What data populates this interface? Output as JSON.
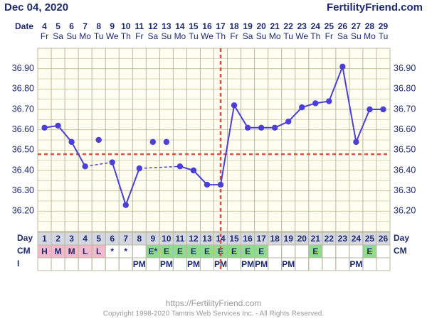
{
  "header": {
    "date": "Dec 04, 2020",
    "site": "FertilityFriend.com"
  },
  "chart_data": {
    "type": "line",
    "date_label": "Date",
    "dates": [
      "4",
      "5",
      "6",
      "7",
      "8",
      "9",
      "10",
      "11",
      "12",
      "13",
      "14",
      "15",
      "16",
      "17",
      "18",
      "19",
      "20",
      "21",
      "22",
      "23",
      "24",
      "25",
      "26",
      "27",
      "28",
      "29"
    ],
    "weekdays": [
      "Fr",
      "Sa",
      "Su",
      "Mo",
      "Tu",
      "We",
      "Th",
      "Fr",
      "Sa",
      "Su",
      "Mo",
      "Tu",
      "We",
      "Th",
      "Fr",
      "Sa",
      "Su",
      "Mo",
      "Tu",
      "We",
      "Th",
      "Fr",
      "Sa",
      "Su",
      "Mo",
      "Tu"
    ],
    "series": [
      {
        "color": "#4a3fd6",
        "connected": true,
        "values": [
          36.61,
          36.62,
          36.54,
          36.42,
          null,
          36.44,
          36.23,
          36.41,
          null,
          null,
          36.42,
          36.4,
          36.33,
          36.33,
          36.72,
          36.61,
          36.61,
          36.61,
          36.64,
          36.71,
          36.73,
          36.74,
          36.91,
          36.54,
          36.7,
          36.7
        ]
      },
      {
        "color": "#4a3fd6",
        "connected": false,
        "values": [
          null,
          null,
          null,
          null,
          36.55,
          null,
          null,
          null,
          36.54,
          36.54,
          null,
          null,
          null,
          null,
          null,
          null,
          null,
          null,
          null,
          null,
          null,
          null,
          null,
          null,
          null,
          null
        ]
      }
    ],
    "ylim": [
      36.1,
      37.0
    ],
    "yticks": [
      {
        "value": 36.2,
        "label": "36.20"
      },
      {
        "value": 36.3,
        "label": "36.30"
      },
      {
        "value": 36.4,
        "label": "36.40"
      },
      {
        "value": 36.5,
        "label": "36.50"
      },
      {
        "value": 36.6,
        "label": "36.60"
      },
      {
        "value": 36.7,
        "label": "36.70"
      },
      {
        "value": 36.8,
        "label": "36.80"
      },
      {
        "value": 36.9,
        "label": "36.90"
      }
    ],
    "grid": true,
    "coverline": 36.48,
    "coverline_color": "#e04a3f",
    "ovulation_date": "17",
    "rows": [
      {
        "label": "Day",
        "values": [
          "1",
          "2",
          "3",
          "4",
          "5",
          "6",
          "7",
          "8",
          "9",
          "10",
          "11",
          "12",
          "13",
          "14",
          "15",
          "16",
          "17",
          "18",
          "19",
          "20",
          "21",
          "22",
          "23",
          "24",
          "25",
          "26"
        ]
      },
      {
        "label": "CM",
        "values": [
          "H",
          "M",
          "M",
          "L",
          "L",
          "*",
          "*",
          null,
          "E*",
          "E",
          "E",
          "E",
          "E",
          "E",
          "E",
          "E",
          "E",
          null,
          null,
          null,
          "E",
          null,
          null,
          null,
          "E",
          null
        ]
      },
      {
        "label": "I",
        "values": [
          null,
          null,
          null,
          null,
          null,
          null,
          null,
          "PM",
          null,
          "PM",
          null,
          "PM",
          null,
          "PM",
          null,
          "PM",
          "PM",
          null,
          "PM",
          null,
          null,
          null,
          null,
          "PM",
          null,
          null
        ]
      }
    ]
  },
  "footer": {
    "url": "https://FertilityFriend.com",
    "copyright": "Copyright 1998-2020 Tamtris Web Services Inc. - All Rights Reserved."
  }
}
